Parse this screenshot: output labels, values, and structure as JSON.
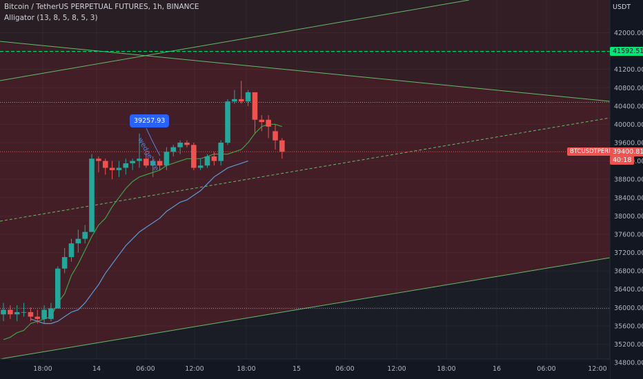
{
  "header": {
    "title": "Bitcoin / TetherUS PERPETUAL FUTURES, 1h, BINANCE",
    "indicator": "Alligator (13, 8, 5, 8, 5, 3)"
  },
  "price_axis": {
    "currency": "USDT",
    "ticks": [
      "42000.00",
      "41600.00",
      "41200.00",
      "40800.00",
      "40400.00",
      "40000.00",
      "39600.00",
      "39200.00",
      "38800.00",
      "38400.00",
      "38000.00",
      "37600.00",
      "37200.00",
      "36800.00",
      "36400.00",
      "36000.00",
      "35600.00",
      "35200.00",
      "34800.00"
    ]
  },
  "time_axis": {
    "ticks": [
      "18:00",
      "14",
      "06:00",
      "12:00",
      "18:00",
      "15",
      "06:00",
      "12:00",
      "18:00",
      "16",
      "06:00",
      "12:00"
    ]
  },
  "labels": {
    "green_level": "41592.51",
    "symbol": "BTCUSDTPERP",
    "last_price": "39400.81",
    "countdown": "40:18",
    "callout": "39257.93",
    "annotation": "wedge bre"
  },
  "colors": {
    "background": "#131722",
    "zone_fill": "#4a1f27",
    "up": "#26a69a",
    "down": "#ef5350",
    "lips": "#43a047",
    "jaw": "#5b9bd5",
    "level_green": "#00e676",
    "callout_blue": "#2962ff"
  },
  "chart_data": {
    "type": "candlestick",
    "title": "Bitcoin / TetherUS PERPETUAL FUTURES, 1h, BINANCE",
    "ylim": [
      34700,
      42700
    ],
    "grid": true,
    "candles": [
      {
        "o": 35850,
        "h": 36100,
        "l": 35700,
        "c": 35950
      },
      {
        "o": 35950,
        "h": 36050,
        "l": 35750,
        "c": 35850
      },
      {
        "o": 35850,
        "h": 36050,
        "l": 35700,
        "c": 35900
      },
      {
        "o": 35900,
        "h": 36100,
        "l": 35800,
        "c": 35900
      },
      {
        "o": 35900,
        "h": 36000,
        "l": 35700,
        "c": 35800
      },
      {
        "o": 35800,
        "h": 35950,
        "l": 35650,
        "c": 35750
      },
      {
        "o": 35750,
        "h": 36050,
        "l": 35650,
        "c": 35950
      },
      {
        "o": 35750,
        "h": 36100,
        "l": 35700,
        "c": 35980
      },
      {
        "o": 35980,
        "h": 36900,
        "l": 35980,
        "c": 36850
      },
      {
        "o": 36850,
        "h": 37300,
        "l": 36750,
        "c": 37100
      },
      {
        "o": 37100,
        "h": 37500,
        "l": 37000,
        "c": 37400
      },
      {
        "o": 37400,
        "h": 37700,
        "l": 37200,
        "c": 37500
      },
      {
        "o": 37500,
        "h": 37800,
        "l": 37400,
        "c": 37650
      },
      {
        "o": 37650,
        "h": 39350,
        "l": 37650,
        "c": 39250
      },
      {
        "o": 39250,
        "h": 39300,
        "l": 38950,
        "c": 39200
      },
      {
        "o": 39200,
        "h": 39250,
        "l": 38900,
        "c": 39050
      },
      {
        "o": 39050,
        "h": 39200,
        "l": 38800,
        "c": 39000
      },
      {
        "o": 39000,
        "h": 39200,
        "l": 38850,
        "c": 39050
      },
      {
        "o": 39050,
        "h": 39250,
        "l": 38900,
        "c": 39150
      },
      {
        "o": 39150,
        "h": 39250,
        "l": 39000,
        "c": 39200
      },
      {
        "o": 39200,
        "h": 39800,
        "l": 39050,
        "c": 39250
      },
      {
        "o": 39250,
        "h": 39350,
        "l": 39050,
        "c": 39100
      },
      {
        "o": 39100,
        "h": 39300,
        "l": 38850,
        "c": 39200
      },
      {
        "o": 39200,
        "h": 39250,
        "l": 39000,
        "c": 39100
      },
      {
        "o": 39100,
        "h": 39500,
        "l": 39000,
        "c": 39400
      },
      {
        "o": 39400,
        "h": 39550,
        "l": 39300,
        "c": 39500
      },
      {
        "o": 39500,
        "h": 39650,
        "l": 39350,
        "c": 39600
      },
      {
        "o": 39600,
        "h": 39650,
        "l": 39500,
        "c": 39550
      },
      {
        "o": 39550,
        "h": 39600,
        "l": 39000,
        "c": 39050
      },
      {
        "o": 39050,
        "h": 39250,
        "l": 39000,
        "c": 39100
      },
      {
        "o": 39100,
        "h": 39350,
        "l": 39050,
        "c": 39300
      },
      {
        "o": 39300,
        "h": 39400,
        "l": 39100,
        "c": 39200
      },
      {
        "o": 39200,
        "h": 39650,
        "l": 39100,
        "c": 39600
      },
      {
        "o": 39600,
        "h": 40550,
        "l": 39550,
        "c": 40500
      },
      {
        "o": 40500,
        "h": 40750,
        "l": 40450,
        "c": 40550
      },
      {
        "o": 40550,
        "h": 40950,
        "l": 40450,
        "c": 40500
      },
      {
        "o": 40500,
        "h": 40750,
        "l": 40400,
        "c": 40700
      },
      {
        "o": 40700,
        "h": 40700,
        "l": 39800,
        "c": 40100
      },
      {
        "o": 40100,
        "h": 40200,
        "l": 39850,
        "c": 40050
      },
      {
        "o": 40100,
        "h": 40200,
        "l": 39700,
        "c": 39950
      },
      {
        "o": 39850,
        "h": 40000,
        "l": 39450,
        "c": 39650
      },
      {
        "o": 39650,
        "h": 39700,
        "l": 39250,
        "c": 39400
      }
    ],
    "lines": [
      {
        "name": "lips",
        "values": [
          35300,
          35350,
          35450,
          35500,
          35650,
          35700,
          35750,
          35800,
          36100,
          36300,
          36700,
          36950,
          37250,
          37550,
          37800,
          37950,
          38200,
          38400,
          38600,
          38750,
          38850,
          38900,
          38950,
          39000,
          39100,
          39150,
          39200,
          39250,
          39250,
          39250,
          39300,
          39350,
          39350,
          39350,
          39400,
          39450,
          39600,
          39800,
          39950,
          40000,
          40000,
          39950
        ]
      },
      {
        "name": "jaw",
        "start_index": 4,
        "values": [
          35750,
          35700,
          35650,
          35650,
          35700,
          35800,
          35900,
          35950,
          36100,
          36300,
          36500,
          36750,
          36950,
          37150,
          37350,
          37500,
          37650,
          37750,
          37850,
          37950,
          38100,
          38200,
          38300,
          38350,
          38450,
          38550,
          38700,
          38850,
          38950,
          39050,
          39100,
          39150,
          39200
        ]
      }
    ],
    "levels": [
      {
        "value": 41592.51,
        "style": "dashed",
        "color": "green"
      },
      {
        "value": 40480,
        "style": "dotted",
        "color": "white"
      },
      {
        "value": 39400.81,
        "style": "dotted",
        "color": "red"
      },
      {
        "value": 35980,
        "style": "dotted",
        "color": "white"
      }
    ]
  }
}
